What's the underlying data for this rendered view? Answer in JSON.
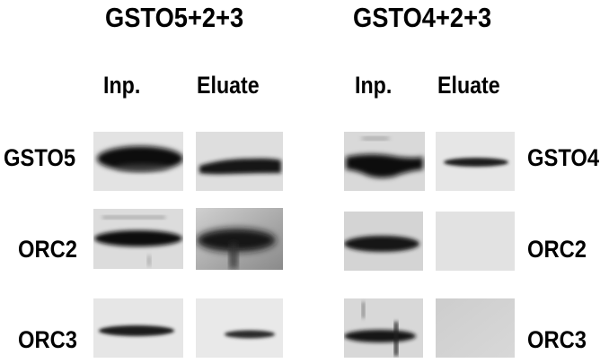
{
  "groups": [
    {
      "title": "GSTO5+2+3",
      "columns": [
        "Inp.",
        "Eluate"
      ],
      "rows": [
        "GSTO5",
        "ORC2",
        "ORC3"
      ]
    },
    {
      "title": "GSTO4+2+3",
      "columns": [
        "Inp.",
        "Eluate"
      ],
      "rows": [
        "GSTO4",
        "ORC2",
        "ORC3"
      ]
    }
  ],
  "blots": {
    "left_gsto5_input": {
      "signal": "strong",
      "bg": "#e3e3e3"
    },
    "left_gsto5_eluate": {
      "signal": "strong",
      "bg": "#dedede"
    },
    "left_orc2_input": {
      "signal": "strong",
      "bg": "#dcdcdc"
    },
    "left_orc2_eluate": {
      "signal": "strong",
      "bg": "#bfbfbf"
    },
    "left_orc3_input": {
      "signal": "medium",
      "bg": "#e6e6e6"
    },
    "left_orc3_eluate": {
      "signal": "weak",
      "bg": "#e9e9e9"
    },
    "right_gsto4_input": {
      "signal": "strong",
      "bg": "#d9d9d9"
    },
    "right_gsto4_eluate": {
      "signal": "medium",
      "bg": "#e6e6e6"
    },
    "right_orc2_input": {
      "signal": "strong",
      "bg": "#d4d4d4"
    },
    "right_orc2_eluate": {
      "signal": "none",
      "bg": "#e2e2e2"
    },
    "right_orc3_input": {
      "signal": "strong",
      "bg": "#d8d8d8"
    },
    "right_orc3_eluate": {
      "signal": "none",
      "bg": "#d2d2d2"
    }
  }
}
